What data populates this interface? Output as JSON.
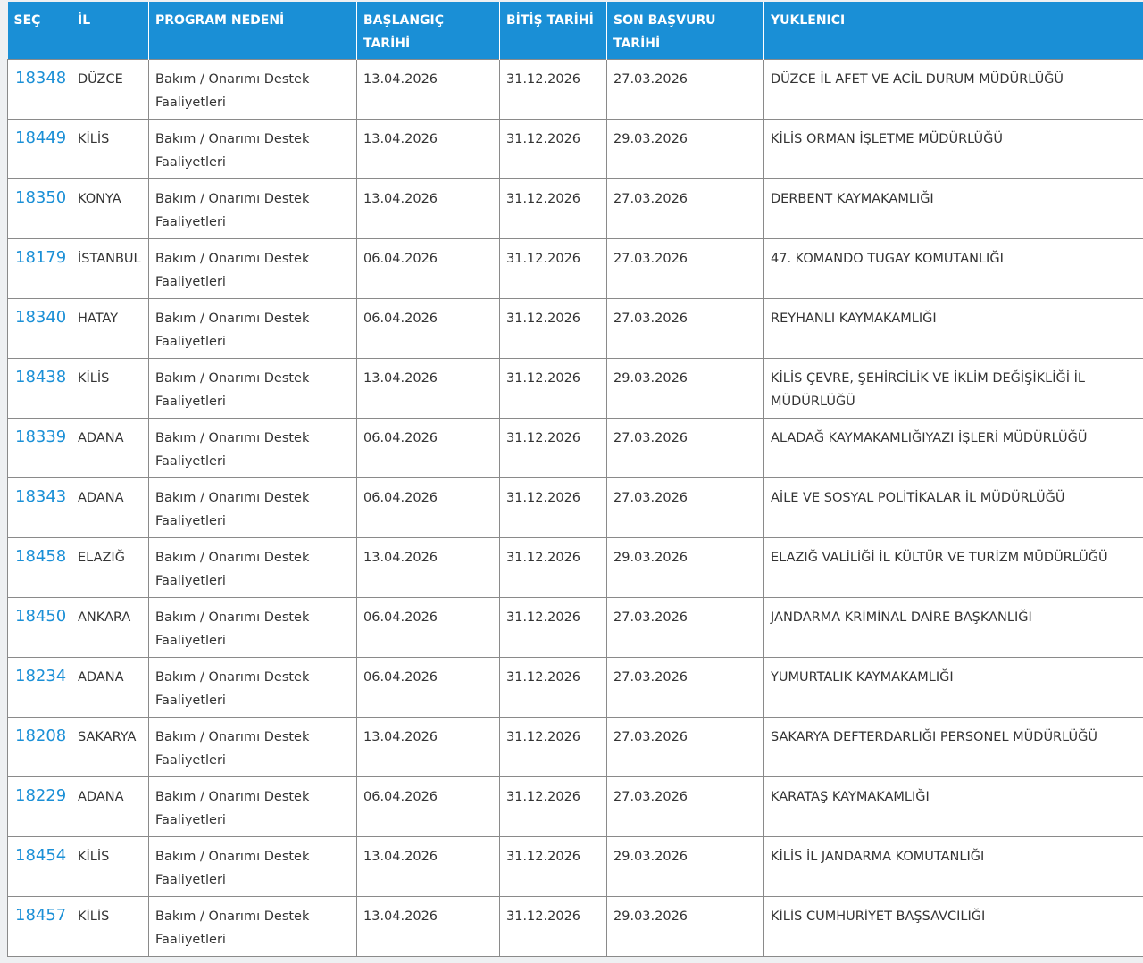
{
  "table": {
    "headers": [
      "SEÇ",
      "İL",
      "PROGRAM NEDENİ",
      "BAŞLANGIÇ TARİHİ",
      "BİTİŞ TARİHİ",
      "SON BAŞVURU TARİHİ",
      "YUKLENICI"
    ],
    "rows": [
      [
        "18348",
        "DÜZCE",
        "Bakım / Onarımı Destek Faaliyetleri",
        "13.04.2026",
        "31.12.2026",
        "27.03.2026",
        "DÜZCE İL AFET VE ACİL DURUM MÜDÜRLÜĞÜ"
      ],
      [
        "18449",
        "KİLİS",
        "Bakım / Onarımı Destek Faaliyetleri",
        "13.04.2026",
        "31.12.2026",
        "29.03.2026",
        "KİLİS ORMAN İŞLETME MÜDÜRLÜĞÜ"
      ],
      [
        "18350",
        "KONYA",
        "Bakım / Onarımı Destek Faaliyetleri",
        "13.04.2026",
        "31.12.2026",
        "27.03.2026",
        "DERBENT KAYMAKAMLIĞI"
      ],
      [
        "18179",
        "İSTANBUL",
        "Bakım / Onarımı Destek Faaliyetleri",
        "06.04.2026",
        "31.12.2026",
        "27.03.2026",
        "47. KOMANDO TUGAY KOMUTANLIĞI"
      ],
      [
        "18340",
        "HATAY",
        "Bakım / Onarımı Destek Faaliyetleri",
        "06.04.2026",
        "31.12.2026",
        "27.03.2026",
        "REYHANLI KAYMAKAMLIĞI"
      ],
      [
        "18438",
        "KİLİS",
        "Bakım / Onarımı Destek Faaliyetleri",
        "13.04.2026",
        "31.12.2026",
        "29.03.2026",
        "KİLİS ÇEVRE, ŞEHİRCİLİK VE İKLİM DEĞİŞİKLİĞİ İL MÜDÜRLÜĞÜ"
      ],
      [
        "18339",
        "ADANA",
        "Bakım / Onarımı Destek Faaliyetleri",
        "06.04.2026",
        "31.12.2026",
        "27.03.2026",
        "ALADAĞ KAYMAKAMLIĞIYAZI İŞLERİ MÜDÜRLÜĞÜ"
      ],
      [
        "18343",
        "ADANA",
        "Bakım / Onarımı Destek Faaliyetleri",
        "06.04.2026",
        "31.12.2026",
        "27.03.2026",
        "AİLE VE SOSYAL POLİTİKALAR İL MÜDÜRLÜĞÜ"
      ],
      [
        "18458",
        "ELAZIĞ",
        "Bakım / Onarımı Destek Faaliyetleri",
        "13.04.2026",
        "31.12.2026",
        "29.03.2026",
        "ELAZIĞ VALİLİĞİ İL KÜLTÜR VE TURİZM MÜDÜRLÜĞÜ"
      ],
      [
        "18450",
        "ANKARA",
        "Bakım / Onarımı Destek Faaliyetleri",
        "06.04.2026",
        "31.12.2026",
        "27.03.2026",
        "JANDARMA KRİMİNAL DAİRE BAŞKANLIĞI"
      ],
      [
        "18234",
        "ADANA",
        "Bakım / Onarımı Destek Faaliyetleri",
        "06.04.2026",
        "31.12.2026",
        "27.03.2026",
        "YUMURTALIK KAYMAKAMLIĞI"
      ],
      [
        "18208",
        "SAKARYA",
        "Bakım / Onarımı Destek Faaliyetleri",
        "13.04.2026",
        "31.12.2026",
        "27.03.2026",
        "SAKARYA DEFTERDARLIĞI PERSONEL MÜDÜRLÜĞÜ"
      ],
      [
        "18229",
        "ADANA",
        "Bakım / Onarımı Destek Faaliyetleri",
        "06.04.2026",
        "31.12.2026",
        "27.03.2026",
        "KARATAŞ KAYMAKAMLIĞI"
      ],
      [
        "18454",
        "KİLİS",
        "Bakım / Onarımı Destek Faaliyetleri",
        "13.04.2026",
        "31.12.2026",
        "29.03.2026",
        "KİLİS İL JANDARMA KOMUTANLIĞI"
      ],
      [
        "18457",
        "KİLİS",
        "Bakım / Onarımı Destek Faaliyetleri",
        "13.04.2026",
        "31.12.2026",
        "29.03.2026",
        "KİLİS CUMHURİYET BAŞSAVCILIĞI"
      ]
    ]
  }
}
